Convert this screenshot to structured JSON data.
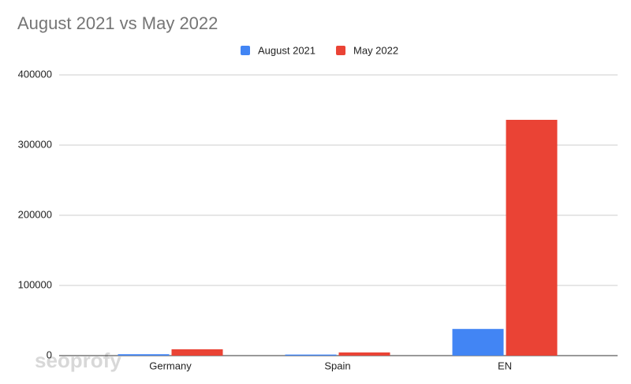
{
  "chart_data": {
    "type": "bar",
    "title": "August 2021 vs May 2022",
    "watermark": "seoprofy",
    "categories": [
      "Germany",
      "Spain",
      "EN"
    ],
    "series": [
      {
        "name": "August 2021",
        "color": "#4285f4",
        "values": [
          2000,
          1500,
          38000
        ]
      },
      {
        "name": "May 2022",
        "color": "#ea4335",
        "values": [
          9000,
          4500,
          336000
        ]
      }
    ],
    "ylim": [
      0,
      400000
    ],
    "yticks": [
      0,
      100000,
      200000,
      300000,
      400000
    ],
    "grid": true,
    "legend": "top"
  }
}
